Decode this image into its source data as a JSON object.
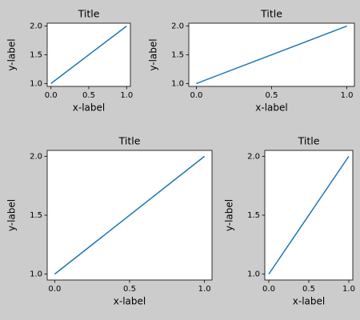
{
  "chart_data": [
    {
      "type": "line",
      "title": "Title",
      "x_label": "x-label",
      "y_label": "y-label",
      "x": [
        0,
        1
      ],
      "values": [
        1,
        2
      ],
      "color": "#1f77b4",
      "xlim": [
        -0.05,
        1.05
      ],
      "ylim": [
        0.95,
        2.05
      ],
      "xticks": [
        {
          "value": 0,
          "label": "0.0"
        },
        0.5,
        {
          "value": 1,
          "label": "1.0"
        }
      ],
      "yticks": [
        {
          "value": 1,
          "label": "1.0"
        },
        1.5,
        {
          "value": 2,
          "label": "2.0"
        }
      ]
    },
    {
      "type": "line",
      "title": "Title",
      "x_label": "x-label",
      "y_label": "y-label",
      "x": [
        0,
        1
      ],
      "values": [
        1,
        2
      ],
      "color": "#1f77b4",
      "xlim": [
        -0.05,
        1.05
      ],
      "ylim": [
        0.95,
        2.05
      ],
      "xticks": [
        {
          "value": 0,
          "label": "0.0"
        },
        0.5,
        {
          "value": 1,
          "label": "1.0"
        }
      ],
      "yticks": [
        {
          "value": 1,
          "label": "1.0"
        },
        1.5,
        {
          "value": 2,
          "label": "2.0"
        }
      ]
    },
    {
      "type": "line",
      "title": "Title",
      "x_label": "x-label",
      "y_label": "y-label",
      "x": [
        0,
        1
      ],
      "values": [
        1,
        2
      ],
      "color": "#1f77b4",
      "xlim": [
        -0.05,
        1.05
      ],
      "ylim": [
        0.95,
        2.05
      ],
      "xticks": [
        {
          "value": 0,
          "label": "0.0"
        },
        0.5,
        {
          "value": 1,
          "label": "1.0"
        }
      ],
      "yticks": [
        {
          "value": 1,
          "label": "1.0"
        },
        1.5,
        {
          "value": 2,
          "label": "2.0"
        }
      ]
    },
    {
      "type": "line",
      "title": "Title",
      "x_label": "x-label",
      "y_label": "y-label",
      "x": [
        0,
        1
      ],
      "values": [
        1,
        2
      ],
      "color": "#1f77b4",
      "xlim": [
        -0.05,
        1.05
      ],
      "ylim": [
        0.95,
        2.05
      ],
      "xticks": [
        {
          "value": 0,
          "label": "0.0"
        },
        0.5,
        {
          "value": 1,
          "label": "1.0"
        }
      ],
      "yticks": [
        {
          "value": 1,
          "label": "1.0"
        },
        1.5,
        {
          "value": 2,
          "label": "2.0"
        }
      ]
    }
  ]
}
